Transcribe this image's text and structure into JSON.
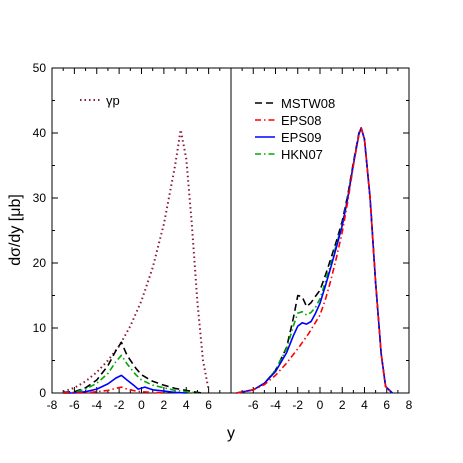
{
  "chart_data": [
    {
      "panel": "left",
      "type": "line",
      "xlabel": "y",
      "ylabel": "dσ/dy [μb]",
      "xlim": [
        -8,
        8
      ],
      "ylim": [
        0,
        50
      ],
      "xticks": [
        "-8",
        "-6",
        "-4",
        "-2",
        "0",
        "2",
        "4",
        "6"
      ],
      "yticks": [
        "0",
        "10",
        "20",
        "30",
        "40",
        "50"
      ],
      "legend_position": "top-left",
      "legend": [
        {
          "name": "γp",
          "color": "#8b1a3a",
          "style": "dotted"
        }
      ],
      "series": [
        {
          "name": "γp",
          "color": "#8b1a3a",
          "style": "dotted",
          "points": [
            [
              -7,
              0.2
            ],
            [
              -6,
              0.8
            ],
            [
              -5,
              1.8
            ],
            [
              -4,
              3.2
            ],
            [
              -3,
              5.0
            ],
            [
              -2,
              7.2
            ],
            [
              -1,
              10.3
            ],
            [
              0,
              14.2
            ],
            [
              1,
              19.3
            ],
            [
              2,
              26.0
            ],
            [
              3,
              35.0
            ],
            [
              3.5,
              40.5
            ],
            [
              4,
              36.0
            ],
            [
              4.5,
              26.0
            ],
            [
              5,
              14.0
            ],
            [
              5.5,
              5.0
            ],
            [
              6,
              0.5
            ]
          ]
        },
        {
          "color": "#000000",
          "style": "dash",
          "points": [
            [
              -7,
              0.1
            ],
            [
              -6,
              0.2
            ],
            [
              -5,
              0.8
            ],
            [
              -4,
              2.0
            ],
            [
              -3,
              4.2
            ],
            [
              -2.3,
              6.5
            ],
            [
              -1.8,
              7.8
            ],
            [
              -1.3,
              5.8
            ],
            [
              -0.5,
              3.8
            ],
            [
              0,
              2.8
            ],
            [
              1,
              1.8
            ],
            [
              2,
              1.2
            ],
            [
              3,
              0.7
            ],
            [
              4,
              0.4
            ],
            [
              5,
              0.1
            ],
            [
              5.5,
              0
            ]
          ]
        },
        {
          "color": "#00aa00",
          "style": "dashdot",
          "points": [
            [
              -7,
              0
            ],
            [
              -6,
              0.1
            ],
            [
              -5,
              0.6
            ],
            [
              -4,
              1.5
            ],
            [
              -3,
              3.0
            ],
            [
              -2.3,
              4.8
            ],
            [
              -1.8,
              5.8
            ],
            [
              -1.3,
              4.5
            ],
            [
              -0.5,
              2.8
            ],
            [
              0,
              2.0
            ],
            [
              1,
              1.2
            ],
            [
              2,
              0.8
            ],
            [
              3,
              0.4
            ],
            [
              4,
              0.2
            ],
            [
              5,
              0
            ]
          ]
        },
        {
          "color": "#0000ff",
          "style": "solid",
          "points": [
            [
              -7,
              0
            ],
            [
              -6,
              0
            ],
            [
              -5,
              0.2
            ],
            [
              -4,
              0.6
            ],
            [
              -3,
              1.4
            ],
            [
              -2.3,
              2.3
            ],
            [
              -1.8,
              2.7
            ],
            [
              -1.3,
              2.0
            ],
            [
              -0.7,
              1.2
            ],
            [
              -0.3,
              0.6
            ],
            [
              0.3,
              0.9
            ],
            [
              1,
              0.5
            ],
            [
              2,
              0.3
            ],
            [
              3,
              0.1
            ],
            [
              4,
              0
            ]
          ]
        },
        {
          "color": "#ff0000",
          "style": "dashdot",
          "points": [
            [
              -7,
              0
            ],
            [
              -5,
              0
            ],
            [
              -4,
              0.2
            ],
            [
              -3,
              0.4
            ],
            [
              -2.3,
              0.7
            ],
            [
              -1.8,
              0.9
            ],
            [
              -1.3,
              0.6
            ],
            [
              -0.5,
              0.3
            ],
            [
              0,
              0.2
            ],
            [
              1,
              0.1
            ],
            [
              2,
              0
            ]
          ]
        }
      ]
    },
    {
      "panel": "right",
      "type": "line",
      "xlabel": "y",
      "xlim": [
        -8,
        8
      ],
      "ylim": [
        0,
        50
      ],
      "xticks": [
        "-6",
        "-4",
        "-2",
        "0",
        "2",
        "4",
        "6",
        "8"
      ],
      "legend_position": "top-left",
      "legend": [
        {
          "name": "MSTW08",
          "color": "#000000",
          "style": "dash"
        },
        {
          "name": "EPS08",
          "color": "#ff0000",
          "style": "dashdot"
        },
        {
          "name": "EPS09",
          "color": "#0000ff",
          "style": "solid"
        },
        {
          "name": "HKN07",
          "color": "#00aa00",
          "style": "dashdot"
        }
      ],
      "series": [
        {
          "name": "MSTW08",
          "color": "#000000",
          "style": "dash",
          "points": [
            [
              -7.5,
              0
            ],
            [
              -6,
              0.5
            ],
            [
              -5,
              1.5
            ],
            [
              -4,
              3.5
            ],
            [
              -3,
              7.0
            ],
            [
              -2.4,
              11.5
            ],
            [
              -2,
              15.0
            ],
            [
              -1.6,
              14.8
            ],
            [
              -1.2,
              13.3
            ],
            [
              -0.8,
              13.9
            ],
            [
              -0.4,
              14.9
            ],
            [
              0,
              15.8
            ],
            [
              0.5,
              18.2
            ],
            [
              1,
              20.8
            ],
            [
              1.5,
              23.5
            ],
            [
              2,
              26.5
            ],
            [
              2.5,
              30.5
            ],
            [
              3,
              35.5
            ],
            [
              3.5,
              40.0
            ],
            [
              3.7,
              40.8
            ],
            [
              4,
              39.0
            ],
            [
              4.5,
              30.0
            ],
            [
              5,
              17.0
            ],
            [
              5.5,
              6.0
            ],
            [
              5.9,
              1.0
            ],
            [
              6.5,
              0
            ]
          ]
        },
        {
          "name": "HKN07",
          "color": "#00aa00",
          "style": "dashdot",
          "points": [
            [
              -7.5,
              0
            ],
            [
              -6,
              0.5
            ],
            [
              -5,
              1.5
            ],
            [
              -4,
              3.5
            ],
            [
              -3,
              6.8
            ],
            [
              -2.4,
              10.3
            ],
            [
              -2,
              12.3
            ],
            [
              -1.6,
              12.5
            ],
            [
              -1.2,
              12.0
            ],
            [
              -0.8,
              12.4
            ],
            [
              -0.4,
              13.2
            ],
            [
              0,
              14.5
            ],
            [
              0.5,
              17.2
            ],
            [
              1,
              20.0
            ],
            [
              1.5,
              23.0
            ],
            [
              2,
              26.0
            ],
            [
              2.5,
              30.2
            ],
            [
              3,
              35.3
            ],
            [
              3.5,
              39.8
            ],
            [
              3.7,
              40.8
            ],
            [
              4,
              39.0
            ],
            [
              4.5,
              30.0
            ],
            [
              5,
              17.0
            ],
            [
              5.5,
              6.0
            ],
            [
              5.9,
              1.0
            ],
            [
              6.5,
              0
            ]
          ]
        },
        {
          "name": "EPS09",
          "color": "#0000ff",
          "style": "solid",
          "points": [
            [
              -7.5,
              0
            ],
            [
              -6,
              0.5
            ],
            [
              -5,
              1.5
            ],
            [
              -4,
              3.3
            ],
            [
              -3,
              6.2
            ],
            [
              -2.4,
              8.8
            ],
            [
              -2,
              10.3
            ],
            [
              -1.6,
              10.8
            ],
            [
              -1.2,
              10.6
            ],
            [
              -0.8,
              11.0
            ],
            [
              -0.4,
              12.3
            ],
            [
              0,
              13.8
            ],
            [
              0.5,
              16.6
            ],
            [
              1,
              19.5
            ],
            [
              1.5,
              22.6
            ],
            [
              2,
              25.8
            ],
            [
              2.5,
              30.0
            ],
            [
              3,
              35.2
            ],
            [
              3.5,
              39.8
            ],
            [
              3.7,
              40.8
            ],
            [
              4,
              39.0
            ],
            [
              4.5,
              30.0
            ],
            [
              5,
              17.0
            ],
            [
              5.5,
              6.0
            ],
            [
              5.9,
              1.0
            ],
            [
              6.5,
              0
            ]
          ]
        },
        {
          "name": "EPS08",
          "color": "#ff0000",
          "style": "dashdot",
          "points": [
            [
              -7.5,
              0
            ],
            [
              -6,
              0.5
            ],
            [
              -5,
              1.3
            ],
            [
              -4,
              2.7
            ],
            [
              -3,
              4.6
            ],
            [
              -2,
              6.8
            ],
            [
              -1,
              9.2
            ],
            [
              0,
              12.0
            ],
            [
              0.5,
              14.5
            ],
            [
              1,
              17.5
            ],
            [
              1.5,
              21.0
            ],
            [
              2,
              24.8
            ],
            [
              2.5,
              29.5
            ],
            [
              3,
              35.0
            ],
            [
              3.5,
              39.7
            ],
            [
              3.7,
              40.8
            ],
            [
              4,
              39.0
            ],
            [
              4.5,
              30.0
            ],
            [
              5,
              17.0
            ],
            [
              5.5,
              6.0
            ],
            [
              5.9,
              1.0
            ],
            [
              6.5,
              0
            ]
          ]
        }
      ]
    }
  ]
}
